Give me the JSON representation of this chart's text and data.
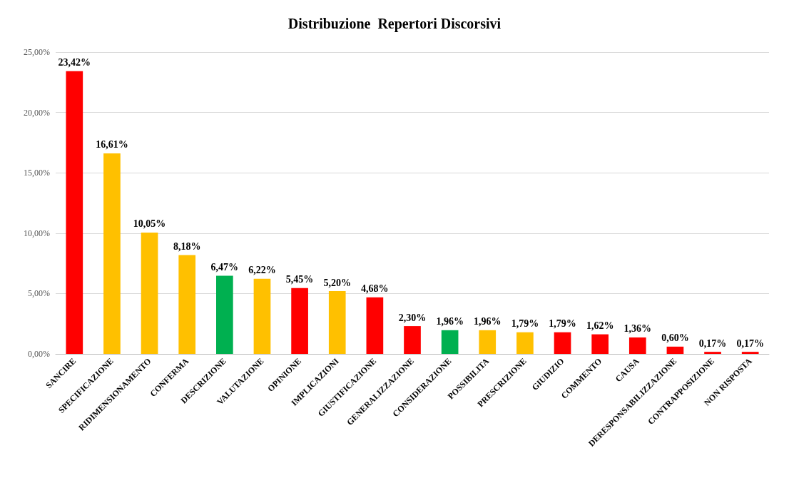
{
  "chart_data": {
    "type": "bar",
    "title": "Distribuzione  Repertori Discorsivi",
    "categories": [
      "SANCIRE",
      "SPECIFICAZIONE",
      "RIDIMENSIONAMENTO",
      "CONFERMA",
      "DESCRIZIONE",
      "VALUTAZIONE",
      "OPINIONE",
      "IMPLICAZIONI",
      "GIUSTIFICAZIONE",
      "GENERALIZZAZIONE",
      "CONSIDERAZIONE",
      "POSSIBILITA",
      "PRESCRIZIONE",
      "GIUDIZIO",
      "COMMENTO",
      "CAUSA",
      "DERESPONSABILIZZAZIONE",
      "CONTRAPPOSIZIONE",
      "NON RISPOSTA"
    ],
    "values": [
      23.42,
      16.61,
      10.05,
      8.18,
      6.47,
      6.22,
      5.45,
      5.2,
      4.68,
      2.3,
      1.96,
      1.96,
      1.79,
      1.79,
      1.62,
      1.36,
      0.6,
      0.17,
      0.17
    ],
    "value_labels": [
      "23,42%",
      "16,61%",
      "10,05%",
      "8,18%",
      "6,47%",
      "6,22%",
      "5,45%",
      "5,20%",
      "4,68%",
      "2,30%",
      "1,96%",
      "1,96%",
      "1,79%",
      "1,79%",
      "1,62%",
      "1,36%",
      "0,60%",
      "0,17%",
      "0,17%"
    ],
    "colors": [
      "#ff0000",
      "#ffc000",
      "#ffc000",
      "#ffc000",
      "#00b050",
      "#ffc000",
      "#ff0000",
      "#ffc000",
      "#ff0000",
      "#ff0000",
      "#00b050",
      "#ffc000",
      "#ffc000",
      "#ff0000",
      "#ff0000",
      "#ff0000",
      "#ff0000",
      "#ff0000",
      "#ff0000"
    ],
    "ylim": [
      0,
      25
    ],
    "yticks": [
      {
        "value": 0,
        "label": "0,00%"
      },
      {
        "value": 5,
        "label": "5,00%"
      },
      {
        "value": 10,
        "label": "10,00%"
      },
      {
        "value": 15,
        "label": "15,00%"
      },
      {
        "value": 20,
        "label": "20,00%"
      },
      {
        "value": 25,
        "label": "25,00%"
      }
    ],
    "grid": "y"
  }
}
